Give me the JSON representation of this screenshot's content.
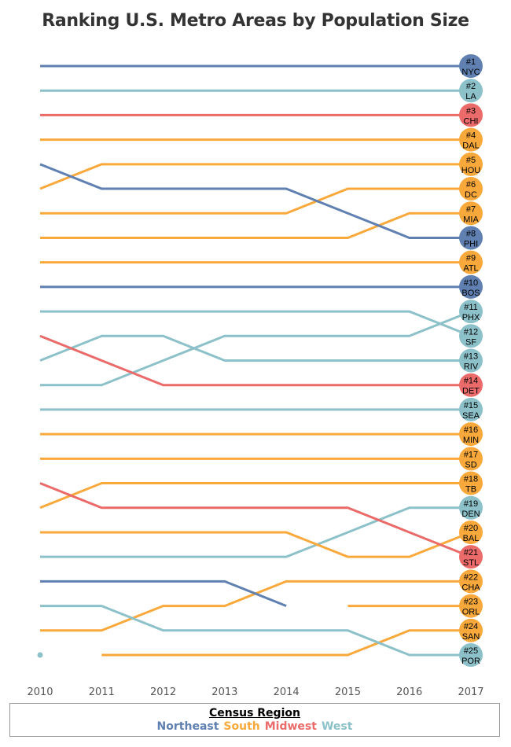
{
  "chart_data": {
    "type": "line",
    "subtype": "bump",
    "title": "Ranking U.S. Metro Areas by Population Size",
    "x": [
      "2010",
      "2011",
      "2012",
      "2013",
      "2014",
      "2015",
      "2016",
      "2017"
    ],
    "ylim": [
      1,
      25
    ],
    "y_reversed": true,
    "grid": false,
    "legend": {
      "title": "Census Region",
      "placement": "bottom",
      "entries": [
        "Northeast",
        "South",
        "Midwest",
        "West"
      ]
    },
    "colors": {
      "Northeast": "#5f80b0",
      "South": "#f9a93b",
      "Midwest": "#ea6b69",
      "West": "#8cc1c9"
    },
    "series": [
      {
        "name": "NYC",
        "region": "Northeast",
        "end_label": "#1",
        "ranks": [
          1,
          1,
          1,
          1,
          1,
          1,
          1,
          1
        ]
      },
      {
        "name": "LA",
        "region": "West",
        "end_label": "#2",
        "ranks": [
          2,
          2,
          2,
          2,
          2,
          2,
          2,
          2
        ]
      },
      {
        "name": "CHI",
        "region": "Midwest",
        "end_label": "#3",
        "ranks": [
          3,
          3,
          3,
          3,
          3,
          3,
          3,
          3
        ]
      },
      {
        "name": "DAL",
        "region": "South",
        "end_label": "#4",
        "ranks": [
          4,
          4,
          4,
          4,
          4,
          4,
          4,
          4
        ]
      },
      {
        "name": "HOU",
        "region": "South",
        "end_label": "#5",
        "ranks": [
          6,
          5,
          5,
          5,
          5,
          5,
          5,
          5
        ]
      },
      {
        "name": "DC",
        "region": "South",
        "end_label": "#6",
        "ranks": [
          7,
          7,
          7,
          7,
          7,
          6,
          6,
          6
        ]
      },
      {
        "name": "MIA",
        "region": "South",
        "end_label": "#7",
        "ranks": [
          8,
          8,
          8,
          8,
          8,
          8,
          7,
          7
        ]
      },
      {
        "name": "PHI",
        "region": "Northeast",
        "end_label": "#8",
        "ranks": [
          5,
          6,
          6,
          6,
          6,
          7,
          8,
          8
        ]
      },
      {
        "name": "ATL",
        "region": "South",
        "end_label": "#9",
        "ranks": [
          9,
          9,
          9,
          9,
          9,
          9,
          9,
          9
        ]
      },
      {
        "name": "BOS",
        "region": "Northeast",
        "end_label": "#10",
        "ranks": [
          10,
          10,
          10,
          10,
          10,
          10,
          10,
          10
        ]
      },
      {
        "name": "PHX",
        "region": "West",
        "end_label": "#11",
        "ranks": [
          14,
          14,
          13,
          12,
          12,
          12,
          12,
          11
        ]
      },
      {
        "name": "SF",
        "region": "West",
        "end_label": "#12",
        "ranks": [
          11,
          11,
          11,
          11,
          11,
          11,
          11,
          12
        ]
      },
      {
        "name": "RIV",
        "region": "West",
        "end_label": "#13",
        "ranks": [
          13,
          12,
          12,
          13,
          13,
          13,
          13,
          13
        ]
      },
      {
        "name": "DET",
        "region": "Midwest",
        "end_label": "#14",
        "ranks": [
          12,
          13,
          14,
          14,
          14,
          14,
          14,
          14
        ]
      },
      {
        "name": "SEA",
        "region": "West",
        "end_label": "#15",
        "ranks": [
          15,
          15,
          15,
          15,
          15,
          15,
          15,
          15
        ]
      },
      {
        "name": "MIN",
        "region": "South",
        "end_label": "#16",
        "ranks": [
          16,
          16,
          16,
          16,
          16,
          16,
          16,
          16
        ]
      },
      {
        "name": "SD",
        "region": "South",
        "end_label": "#17",
        "ranks": [
          17,
          17,
          17,
          17,
          17,
          17,
          17,
          17
        ]
      },
      {
        "name": "TB",
        "region": "South",
        "end_label": "#18",
        "ranks": [
          19,
          18,
          18,
          18,
          18,
          18,
          18,
          18
        ]
      },
      {
        "name": "DEN",
        "region": "West",
        "end_label": "#19",
        "ranks": [
          21,
          21,
          21,
          21,
          21,
          20,
          19,
          19
        ]
      },
      {
        "name": "BAL",
        "region": "South",
        "end_label": "#20",
        "ranks": [
          20,
          20,
          20,
          20,
          20,
          21,
          21,
          20
        ]
      },
      {
        "name": "STL",
        "region": "Midwest",
        "end_label": "#21",
        "ranks": [
          18,
          19,
          19,
          19,
          19,
          19,
          20,
          21
        ]
      },
      {
        "name": "CHA",
        "region": "South",
        "end_label": "#22",
        "ranks": [
          24,
          24,
          23,
          23,
          22,
          22,
          22,
          22
        ]
      },
      {
        "name": "ORL",
        "region": "South",
        "end_label": "#23",
        "ranks": [
          null,
          null,
          null,
          null,
          null,
          23,
          23,
          23
        ]
      },
      {
        "name": "SAN",
        "region": "South",
        "end_label": "#24",
        "ranks": [
          null,
          25,
          25,
          25,
          25,
          25,
          24,
          24
        ]
      },
      {
        "name": "POR",
        "region": "West",
        "end_label": "#25",
        "ranks": [
          23,
          23,
          24,
          24,
          24,
          24,
          25,
          25
        ]
      },
      {
        "name": "",
        "region": "Northeast",
        "end_label": "",
        "ranks": [
          22,
          22,
          22,
          22,
          23,
          null,
          null,
          null
        ]
      },
      {
        "name": "",
        "region": "West",
        "end_label": "",
        "ranks": [
          25,
          null,
          null,
          null,
          null,
          null,
          null,
          null
        ]
      }
    ]
  }
}
